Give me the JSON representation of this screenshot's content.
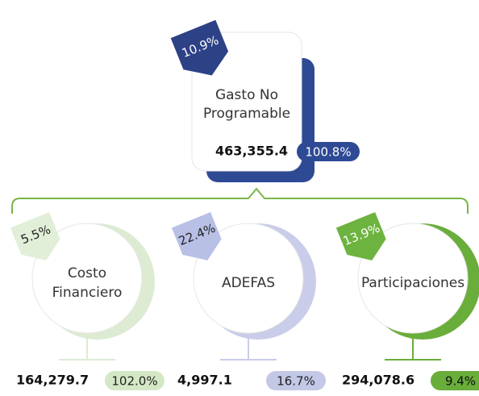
{
  "root": {
    "badge": "10.9%",
    "label_line1": "Gasto No",
    "label_line2": "Programable",
    "value": "463,355.4",
    "pill": "100.8%"
  },
  "children": [
    {
      "badge": "5.5%",
      "label_line1": "Costo",
      "label_line2": "Financiero",
      "value": "164,279.7",
      "pill": "102.0%"
    },
    {
      "badge": "22.4%",
      "label_line1": "ADEFAS",
      "value": "4,997.1",
      "pill": "16.7%"
    },
    {
      "badge": "13.9%",
      "label_line1": "Participaciones",
      "value": "294,078.6",
      "pill": "9.4%"
    }
  ]
}
